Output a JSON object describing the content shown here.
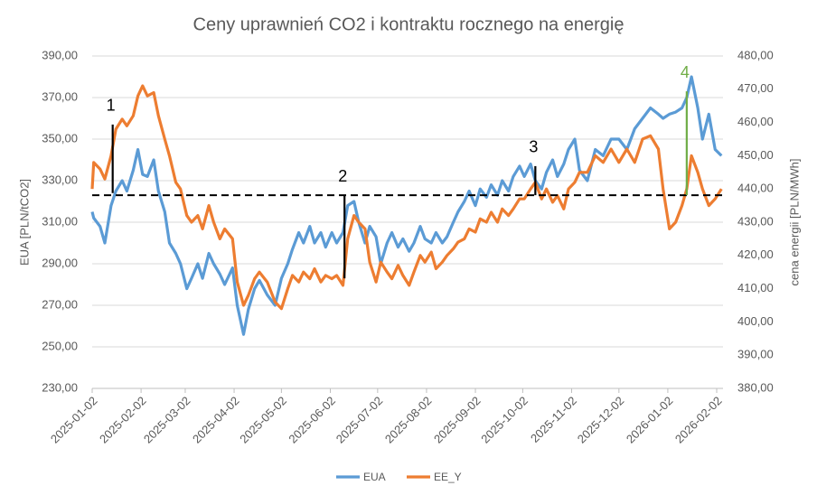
{
  "chart_data": {
    "type": "line",
    "title": "Ceny uprawnień CO2 i kontraktu rocznego na energię",
    "y_label": "EUA [PLN/tCO2]",
    "y2_label": "cena energii [PLN/MWh]",
    "x": [
      "2025-01-02",
      "2025-01-03",
      "2025-01-07",
      "2025-01-10",
      "2025-01-14",
      "2025-01-17",
      "2025-01-21",
      "2025-01-24",
      "2025-01-28",
      "2025-01-31",
      "2025-02-03",
      "2025-02-06",
      "2025-02-10",
      "2025-02-13",
      "2025-02-17",
      "2025-02-20",
      "2025-02-24",
      "2025-02-27",
      "2025-03-03",
      "2025-03-06",
      "2025-03-10",
      "2025-03-13",
      "2025-03-17",
      "2025-03-20",
      "2025-03-24",
      "2025-03-27",
      "2025-04-01",
      "2025-04-04",
      "2025-04-08",
      "2025-04-11",
      "2025-04-15",
      "2025-04-18",
      "2025-04-23",
      "2025-04-28",
      "2025-05-02",
      "2025-05-06",
      "2025-05-09",
      "2025-05-13",
      "2025-05-16",
      "2025-05-20",
      "2025-05-23",
      "2025-05-27",
      "2025-05-30",
      "2025-06-03",
      "2025-06-06",
      "2025-06-10",
      "2025-06-13",
      "2025-06-17",
      "2025-06-20",
      "2025-06-24",
      "2025-06-27",
      "2025-07-01",
      "2025-07-04",
      "2025-07-08",
      "2025-07-11",
      "2025-07-15",
      "2025-07-18",
      "2025-07-22",
      "2025-07-25",
      "2025-07-29",
      "2025-08-01",
      "2025-08-05",
      "2025-08-08",
      "2025-08-12",
      "2025-08-15",
      "2025-08-19",
      "2025-08-22",
      "2025-08-26",
      "2025-08-29",
      "2025-09-02",
      "2025-09-05",
      "2025-09-09",
      "2025-09-12",
      "2025-09-16",
      "2025-09-19",
      "2025-09-23",
      "2025-09-26",
      "2025-09-30",
      "2025-10-03",
      "2025-10-07",
      "2025-10-10",
      "2025-10-14",
      "2025-10-17",
      "2025-10-21",
      "2025-10-24",
      "2025-10-28",
      "2025-10-31",
      "2025-11-04",
      "2025-11-07",
      "2025-11-12",
      "2025-11-17",
      "2025-11-22",
      "2025-11-27",
      "2025-12-02",
      "2025-12-07",
      "2025-12-12",
      "2025-12-17",
      "2025-12-22",
      "2025-12-27",
      "2025-12-30",
      "2026-01-03",
      "2026-01-07",
      "2026-01-11",
      "2026-01-14",
      "2026-01-17",
      "2026-01-21",
      "2026-01-24",
      "2026-01-28",
      "2026-02-01",
      "2026-02-05"
    ],
    "series": [
      {
        "name": "EUA",
        "color": "#5b9bd5",
        "axis": "y",
        "values": [
          315,
          312,
          308,
          300,
          318,
          325,
          330,
          325,
          335,
          345,
          333,
          332,
          340,
          325,
          315,
          300,
          295,
          290,
          278,
          283,
          290,
          283,
          295,
          290,
          285,
          280,
          288,
          270,
          256,
          268,
          278,
          282,
          275,
          270,
          283,
          290,
          297,
          305,
          300,
          308,
          300,
          305,
          298,
          305,
          300,
          305,
          318,
          320,
          310,
          300,
          308,
          303,
          290,
          300,
          305,
          298,
          302,
          296,
          300,
          308,
          302,
          300,
          305,
          300,
          303,
          310,
          315,
          320,
          325,
          318,
          326,
          322,
          328,
          323,
          330,
          325,
          332,
          337,
          332,
          338,
          330,
          326,
          334,
          340,
          332,
          338,
          345,
          350,
          335,
          330,
          345,
          342,
          350,
          350,
          345,
          355,
          360,
          365,
          362,
          360,
          362,
          363,
          365,
          370,
          380,
          365,
          350,
          362,
          345,
          342
        ]
      },
      {
        "name": "EE_Y",
        "color": "#ed7d31",
        "axis": "y2",
        "values": [
          440,
          448,
          446,
          443,
          450,
          458,
          461,
          459,
          462,
          468,
          471,
          468,
          469,
          462,
          455,
          450,
          442,
          440,
          432,
          430,
          432,
          428,
          435,
          430,
          425,
          428,
          425,
          412,
          405,
          408,
          413,
          415,
          412,
          406,
          404,
          410,
          414,
          412,
          415,
          413,
          416,
          412,
          414,
          413,
          414,
          411,
          425,
          432,
          430,
          428,
          418,
          412,
          418,
          415,
          413,
          417,
          414,
          411,
          415,
          420,
          418,
          421,
          416,
          418,
          420,
          422,
          424,
          425,
          428,
          427,
          431,
          430,
          433,
          430,
          434,
          432,
          434,
          437,
          437,
          440,
          442,
          437,
          440,
          436,
          438,
          434,
          440,
          442,
          445,
          445,
          450,
          448,
          452,
          448,
          452,
          448,
          455,
          456,
          452,
          440,
          428,
          430,
          435,
          440,
          450,
          445,
          440,
          435,
          437,
          440
        ]
      }
    ],
    "xlim": [
      "2025-01-02",
      "2026-02-06"
    ],
    "xticks": [
      "2025-01-02",
      "2025-02-02",
      "2025-03-02",
      "2025-04-02",
      "2025-05-02",
      "2025-06-02",
      "2025-07-02",
      "2025-08-02",
      "2025-09-02",
      "2025-10-02",
      "2025-11-02",
      "2025-12-02",
      "2026-01-02",
      "2026-02-02"
    ],
    "ylim": [
      230,
      390
    ],
    "yticks": [
      {
        "value": 230,
        "label": "230,00"
      },
      {
        "value": 250,
        "label": "250,00"
      },
      {
        "value": 270,
        "label": "270,00"
      },
      {
        "value": 290,
        "label": "290,00"
      },
      {
        "value": 310,
        "label": "310,00"
      },
      {
        "value": 330,
        "label": "330,00"
      },
      {
        "value": 350,
        "label": "350,00"
      },
      {
        "value": 370,
        "label": "370,00"
      },
      {
        "value": 390,
        "label": "390,00"
      }
    ],
    "y2lim": [
      380,
      480
    ],
    "y2ticks": [
      {
        "value": 380,
        "label": "380,00"
      },
      {
        "value": 390,
        "label": "390,00"
      },
      {
        "value": 400,
        "label": "400,00"
      },
      {
        "value": 410,
        "label": "410,00"
      },
      {
        "value": 420,
        "label": "420,00"
      },
      {
        "value": 430,
        "label": "430,00"
      },
      {
        "value": 440,
        "label": "440,00"
      },
      {
        "value": 450,
        "label": "450,00"
      },
      {
        "value": 460,
        "label": "460,00"
      },
      {
        "value": 470,
        "label": "470,00"
      },
      {
        "value": 480,
        "label": "480,00"
      }
    ],
    "grid": true,
    "legend": "bottom",
    "reference_line": 323,
    "annotations": [
      {
        "label": "1",
        "x": "2025-01-15",
        "y": [
          324,
          357
        ],
        "color": "#000000"
      },
      {
        "label": "2",
        "x": "2025-06-11",
        "y": [
          283,
          323
        ],
        "color": "#000000"
      },
      {
        "label": "3",
        "x": "2025-10-10",
        "y": [
          323,
          337
        ],
        "color": "#000000"
      },
      {
        "label": "4",
        "x": "2026-01-14",
        "y": [
          323,
          373
        ],
        "color": "#70ad47"
      }
    ]
  }
}
